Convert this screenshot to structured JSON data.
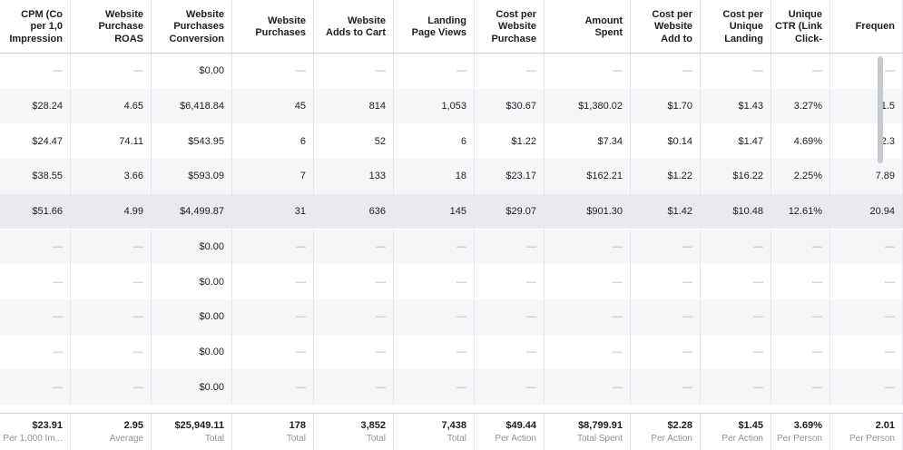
{
  "headers": [
    "CPM (Co\nper 1,0\nImpression",
    "Website\nPurchase\nROAS",
    "Website\nPurchases\nConversion",
    "Website\nPurchases",
    "Website\nAdds to Cart",
    "Landing\nPage Views",
    "Cost per\nWebsite\nPurchase",
    "Amount\nSpent",
    "Cost per\nWebsite\nAdd to",
    "Cost per\nUnique\nLanding",
    "Unique\nCTR (Link\nClick-",
    "Frequen"
  ],
  "rows": [
    [
      "—",
      "—",
      "$0.00",
      "—",
      "—",
      "—",
      "—",
      "—",
      "—",
      "—",
      "—",
      "—"
    ],
    [
      "$28.24",
      "4.65",
      "$6,418.84",
      "45",
      "814",
      "1,053",
      "$30.67",
      "$1,380.02",
      "$1.70",
      "$1.43",
      "3.27%",
      "1.5"
    ],
    [
      "$24.47",
      "74.11",
      "$543.95",
      "6",
      "52",
      "6",
      "$1.22",
      "$7.34",
      "$0.14",
      "$1.47",
      "4.69%",
      "2.3"
    ],
    [
      "$38.55",
      "3.66",
      "$593.09",
      "7",
      "133",
      "18",
      "$23.17",
      "$162.21",
      "$1.22",
      "$16.22",
      "2.25%",
      "7.89"
    ],
    [
      "$51.66",
      "4.99",
      "$4,499.87",
      "31",
      "636",
      "145",
      "$29.07",
      "$901.30",
      "$1.42",
      "$10.48",
      "12.61%",
      "20.94"
    ],
    [
      "—",
      "—",
      "$0.00",
      "—",
      "—",
      "—",
      "—",
      "—",
      "—",
      "—",
      "—",
      "—"
    ],
    [
      "—",
      "—",
      "$0.00",
      "—",
      "—",
      "—",
      "—",
      "—",
      "—",
      "—",
      "—",
      "—"
    ],
    [
      "—",
      "—",
      "$0.00",
      "—",
      "—",
      "—",
      "—",
      "—",
      "—",
      "—",
      "—",
      "—"
    ],
    [
      "—",
      "—",
      "$0.00",
      "—",
      "—",
      "—",
      "—",
      "—",
      "—",
      "—",
      "—",
      "—"
    ],
    [
      "—",
      "—",
      "$0.00",
      "—",
      "—",
      "—",
      "—",
      "—",
      "—",
      "—",
      "—",
      "—"
    ]
  ],
  "footer": [
    {
      "value": "$23.91",
      "label": "Per 1,000 Im..."
    },
    {
      "value": "2.95",
      "label": "Average"
    },
    {
      "value": "$25,949.11",
      "label": "Total"
    },
    {
      "value": "178",
      "label": "Total"
    },
    {
      "value": "3,852",
      "label": "Total"
    },
    {
      "value": "7,438",
      "label": "Total"
    },
    {
      "value": "$49.44",
      "label": "Per Action"
    },
    {
      "value": "$8,799.91",
      "label": "Total Spent"
    },
    {
      "value": "$2.28",
      "label": "Per Action"
    },
    {
      "value": "$1.45",
      "label": "Per Action"
    },
    {
      "value": "3.69%",
      "label": "Per Person"
    },
    {
      "value": "2.01",
      "label": "Per Person"
    }
  ]
}
